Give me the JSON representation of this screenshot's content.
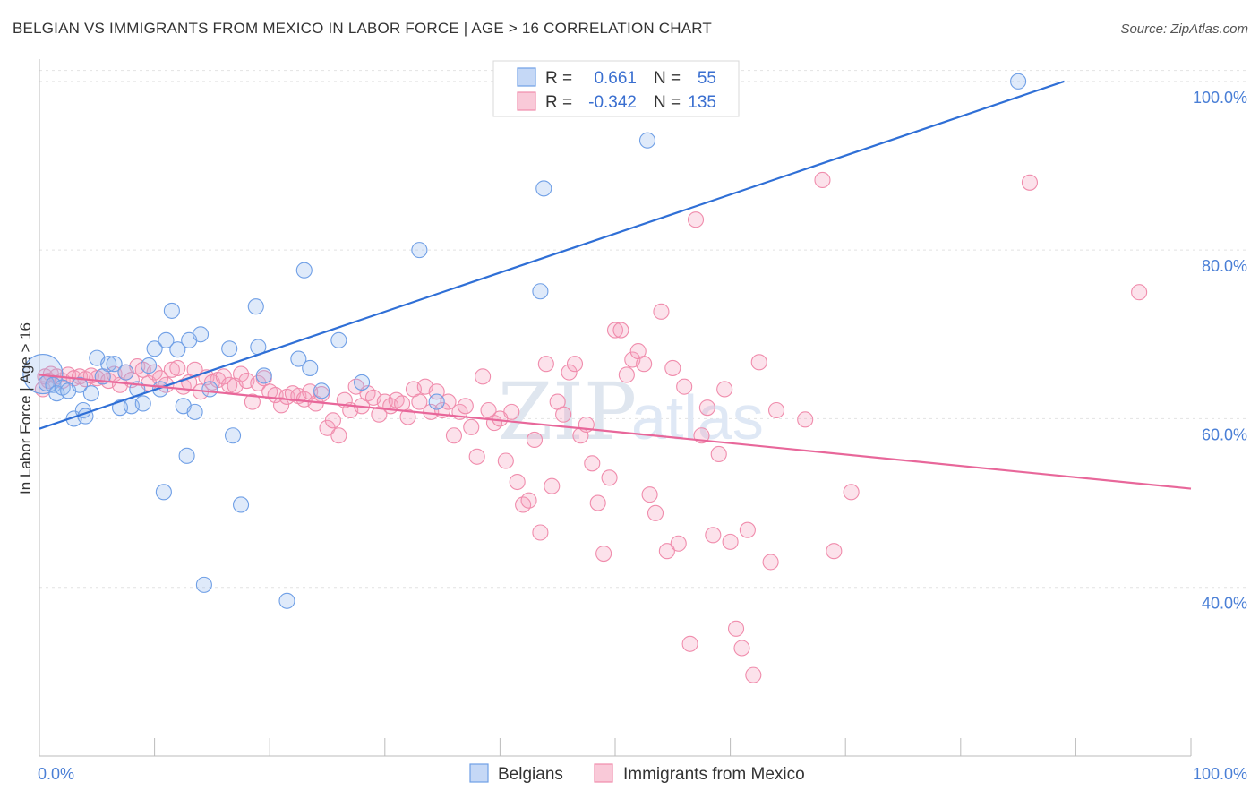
{
  "title": "BELGIAN VS IMMIGRANTS FROM MEXICO IN LABOR FORCE | AGE > 16 CORRELATION CHART",
  "source": "Source: ZipAtlas.com",
  "watermark": {
    "zip": "ZIP",
    "atlas": "atlas"
  },
  "chart_data": {
    "type": "scatter",
    "title": "BELGIAN VS IMMIGRANTS FROM MEXICO IN LABOR FORCE | AGE > 16 CORRELATION CHART",
    "xlabel": "",
    "ylabel": "In Labor Force | Age > 16",
    "xlim": [
      0,
      100
    ],
    "ylim": [
      20,
      102
    ],
    "x_tick_labels": [
      "0.0%",
      "100.0%"
    ],
    "y_ticks": [
      40,
      60,
      80,
      100
    ],
    "y_tick_labels": [
      "40.0%",
      "60.0%",
      "80.0%",
      "100.0%"
    ],
    "grid": true,
    "legend_position": "top-center",
    "colors": {
      "belgians": "#6f9fe6",
      "mexico": "#f08cac",
      "belgians_line": "#2f6fd6",
      "mexico_line": "#e8679a"
    },
    "legend": {
      "rows": [
        {
          "r_label": "R =",
          "r_value": "0.661",
          "n_label": "N =",
          "n_value": "55"
        },
        {
          "r_label": "R =",
          "r_value": "-0.342",
          "n_label": "N =",
          "n_value": "135"
        }
      ]
    },
    "series": [
      {
        "name": "Belgians",
        "trend": {
          "x": [
            0,
            89
          ],
          "y": [
            58.8,
            100.0
          ]
        },
        "points": [
          [
            0.3,
            65.3
          ],
          [
            0.6,
            64.2
          ],
          [
            1.2,
            64.0
          ],
          [
            1.5,
            63.0
          ],
          [
            2.0,
            63.7
          ],
          [
            2.5,
            63.3
          ],
          [
            3.0,
            60.0
          ],
          [
            3.5,
            64.0
          ],
          [
            3.8,
            61.0
          ],
          [
            4.0,
            60.3
          ],
          [
            4.5,
            63.0
          ],
          [
            5.0,
            67.2
          ],
          [
            5.5,
            65.0
          ],
          [
            6.0,
            66.5
          ],
          [
            6.5,
            66.5
          ],
          [
            7.0,
            61.3
          ],
          [
            7.5,
            65.5
          ],
          [
            8.0,
            61.5
          ],
          [
            8.5,
            63.5
          ],
          [
            9.0,
            61.8
          ],
          [
            9.5,
            66.3
          ],
          [
            10.0,
            68.3
          ],
          [
            10.5,
            63.5
          ],
          [
            10.8,
            51.3
          ],
          [
            11.0,
            69.3
          ],
          [
            11.5,
            72.8
          ],
          [
            12.0,
            68.2
          ],
          [
            12.5,
            61.5
          ],
          [
            12.8,
            55.6
          ],
          [
            13.0,
            69.3
          ],
          [
            13.5,
            60.8
          ],
          [
            14.0,
            70.0
          ],
          [
            14.3,
            40.3
          ],
          [
            14.8,
            63.5
          ],
          [
            16.5,
            68.3
          ],
          [
            16.8,
            58.0
          ],
          [
            17.5,
            49.8
          ],
          [
            18.8,
            73.3
          ],
          [
            19.0,
            68.5
          ],
          [
            19.5,
            65.1
          ],
          [
            21.5,
            38.4
          ],
          [
            22.5,
            67.1
          ],
          [
            23.0,
            77.6
          ],
          [
            23.5,
            66.0
          ],
          [
            24.5,
            63.3
          ],
          [
            26.0,
            69.3
          ],
          [
            28.0,
            64.3
          ],
          [
            33.0,
            80.0
          ],
          [
            34.5,
            62.0
          ],
          [
            43.5,
            75.1
          ],
          [
            43.8,
            87.3
          ],
          [
            52.0,
            100.8
          ],
          [
            52.5,
            100.8
          ],
          [
            52.8,
            93.0
          ],
          [
            85.0,
            100.0
          ]
        ]
      },
      {
        "name": "Immigrants from Mexico",
        "trend": {
          "x": [
            0,
            100
          ],
          "y": [
            65.2,
            51.7
          ]
        },
        "points": [
          [
            0.3,
            63.5
          ],
          [
            0.5,
            65.0
          ],
          [
            0.8,
            64.5
          ],
          [
            1.0,
            65.3
          ],
          [
            1.5,
            65.0
          ],
          [
            2.0,
            64.5
          ],
          [
            2.5,
            65.2
          ],
          [
            3.0,
            64.8
          ],
          [
            3.5,
            65.0
          ],
          [
            4.0,
            64.7
          ],
          [
            4.5,
            65.1
          ],
          [
            5.0,
            64.8
          ],
          [
            5.5,
            65.0
          ],
          [
            6.0,
            64.5
          ],
          [
            6.5,
            65.3
          ],
          [
            7.0,
            64.0
          ],
          [
            7.5,
            65.5
          ],
          [
            8.0,
            64.6
          ],
          [
            8.5,
            66.2
          ],
          [
            9.0,
            65.8
          ],
          [
            9.5,
            64.2
          ],
          [
            10.0,
            65.5
          ],
          [
            10.5,
            64.8
          ],
          [
            11.0,
            64.0
          ],
          [
            11.5,
            65.8
          ],
          [
            12.0,
            66.0
          ],
          [
            12.5,
            63.8
          ],
          [
            13.0,
            64.3
          ],
          [
            13.5,
            65.8
          ],
          [
            14.0,
            63.2
          ],
          [
            14.5,
            64.9
          ],
          [
            15.0,
            64.3
          ],
          [
            15.5,
            64.6
          ],
          [
            16.0,
            65.0
          ],
          [
            16.5,
            64.0
          ],
          [
            17.0,
            63.9
          ],
          [
            17.5,
            65.3
          ],
          [
            18.0,
            64.5
          ],
          [
            18.5,
            62.0
          ],
          [
            19.0,
            64.2
          ],
          [
            19.5,
            64.8
          ],
          [
            20.0,
            63.2
          ],
          [
            20.5,
            62.8
          ],
          [
            21.0,
            61.6
          ],
          [
            21.5,
            62.6
          ],
          [
            22.0,
            63.0
          ],
          [
            22.5,
            62.7
          ],
          [
            23.0,
            62.3
          ],
          [
            23.5,
            63.2
          ],
          [
            24.0,
            61.8
          ],
          [
            24.5,
            62.9
          ],
          [
            25.0,
            58.9
          ],
          [
            25.5,
            59.8
          ],
          [
            26.0,
            58.0
          ],
          [
            26.5,
            62.2
          ],
          [
            27.0,
            61.0
          ],
          [
            27.5,
            63.8
          ],
          [
            28.0,
            61.5
          ],
          [
            28.5,
            63.0
          ],
          [
            29.0,
            62.5
          ],
          [
            29.5,
            60.5
          ],
          [
            30.0,
            62.0
          ],
          [
            30.5,
            61.5
          ],
          [
            31.0,
            62.2
          ],
          [
            31.5,
            61.8
          ],
          [
            32.0,
            60.2
          ],
          [
            32.5,
            63.5
          ],
          [
            33.0,
            62.0
          ],
          [
            33.5,
            63.8
          ],
          [
            34.0,
            60.8
          ],
          [
            34.5,
            63.2
          ],
          [
            35.0,
            61.0
          ],
          [
            35.5,
            62.0
          ],
          [
            36.0,
            58.0
          ],
          [
            36.5,
            60.8
          ],
          [
            37.0,
            61.5
          ],
          [
            37.5,
            59.0
          ],
          [
            38.0,
            55.5
          ],
          [
            38.5,
            65.0
          ],
          [
            39.0,
            61.0
          ],
          [
            39.5,
            59.5
          ],
          [
            40.0,
            60.0
          ],
          [
            40.5,
            55.0
          ],
          [
            41.0,
            60.8
          ],
          [
            41.5,
            52.5
          ],
          [
            42.0,
            49.8
          ],
          [
            42.5,
            50.3
          ],
          [
            43.0,
            57.5
          ],
          [
            43.5,
            46.5
          ],
          [
            44.0,
            66.5
          ],
          [
            44.5,
            52.0
          ],
          [
            45.0,
            62.0
          ],
          [
            45.5,
            60.5
          ],
          [
            46.0,
            65.5
          ],
          [
            46.5,
            66.5
          ],
          [
            47.0,
            58.0
          ],
          [
            47.5,
            59.3
          ],
          [
            48.0,
            54.7
          ],
          [
            48.5,
            50.0
          ],
          [
            49.0,
            44.0
          ],
          [
            49.5,
            53.0
          ],
          [
            50.0,
            70.5
          ],
          [
            50.5,
            70.5
          ],
          [
            51.0,
            65.2
          ],
          [
            51.5,
            67.0
          ],
          [
            52.0,
            68.0
          ],
          [
            52.5,
            66.5
          ],
          [
            53.0,
            51.0
          ],
          [
            53.5,
            48.8
          ],
          [
            54.0,
            72.7
          ],
          [
            54.5,
            44.3
          ],
          [
            55.0,
            66.0
          ],
          [
            55.5,
            45.2
          ],
          [
            56.0,
            63.8
          ],
          [
            56.5,
            33.3
          ],
          [
            57.0,
            83.6
          ],
          [
            57.5,
            58.0
          ],
          [
            58.0,
            61.3
          ],
          [
            58.5,
            46.2
          ],
          [
            59.0,
            55.8
          ],
          [
            59.5,
            63.5
          ],
          [
            60.0,
            45.4
          ],
          [
            60.5,
            35.1
          ],
          [
            61.0,
            32.8
          ],
          [
            61.5,
            46.8
          ],
          [
            62.0,
            29.6
          ],
          [
            62.5,
            66.7
          ],
          [
            63.5,
            43.0
          ],
          [
            64.0,
            61.0
          ],
          [
            66.5,
            59.9
          ],
          [
            68.0,
            88.3
          ],
          [
            69.0,
            44.3
          ],
          [
            70.5,
            51.3
          ],
          [
            86.0,
            88.0
          ],
          [
            95.5,
            75.0
          ]
        ]
      }
    ]
  },
  "bottom_legend": {
    "items": [
      {
        "label": "Belgians"
      },
      {
        "label": "Immigrants from Mexico"
      }
    ]
  }
}
